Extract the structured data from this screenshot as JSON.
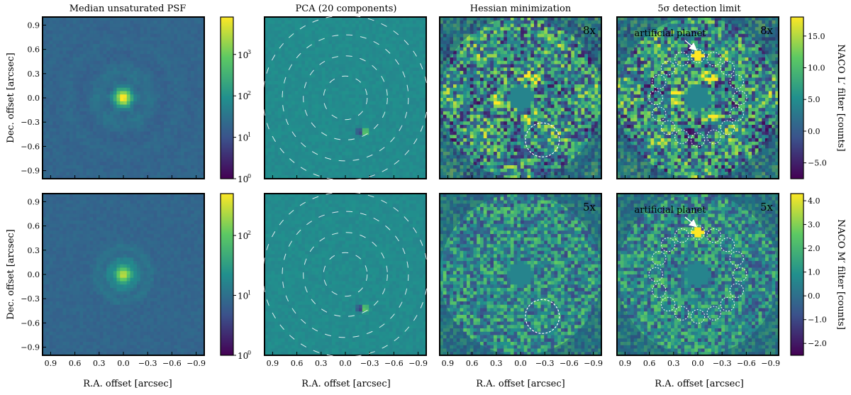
{
  "chart_data": {
    "type": "heatmap",
    "column_titles": [
      "Median unsaturated PSF",
      "PCA (20 components)",
      "Hessian minimization",
      "5σ detection limit"
    ],
    "xlabel": "R.A. offset [arcsec]",
    "ylabel": "Dec. offset [arcsec]",
    "x_ticks": [
      "0.9",
      "0.6",
      "0.3",
      "0.0",
      "−0.3",
      "−0.6",
      "−0.9"
    ],
    "y_ticks": [
      "0.9",
      "0.6",
      "0.3",
      "0.0",
      "−0.3",
      "−0.6",
      "−0.9"
    ],
    "xlim": [
      1.0,
      -1.0
    ],
    "ylim": [
      -1.0,
      1.0
    ],
    "colormap": "viridis",
    "colormap_stops": [
      "#440154",
      "#3b528b",
      "#21908d",
      "#5dc963",
      "#fde725"
    ],
    "annotation_color": "#ffffff",
    "planet_label": "artificial planet",
    "rows": [
      {
        "filter_label": "NACO L′ filter [counts]",
        "magnification": "8x",
        "psf_colorbar": {
          "scale": "log",
          "range": [
            1,
            8000
          ],
          "ticks": [
            "10⁰",
            "10¹",
            "10²",
            "10³"
          ]
        },
        "residual_colorbar": {
          "scale": "linear",
          "range": [
            -7.5,
            18
          ],
          "ticks": [
            "15.0",
            "10.0",
            "5.0",
            "0.0",
            "−5.0"
          ]
        },
        "pca_source": {
          "x": -0.22,
          "y": -0.42
        },
        "hessian_circle": {
          "x": -0.27,
          "y": -0.52,
          "r": 0.21
        },
        "planet": {
          "x": 0.0,
          "y": 0.52
        },
        "detection_ring_radius": 0.52,
        "detection_circle_count": 16
      },
      {
        "filter_label": "NACO M′ filter [counts]",
        "magnification": "5x",
        "psf_colorbar": {
          "scale": "log",
          "range": [
            1,
            500
          ],
          "ticks": [
            "10⁰",
            "10¹",
            "10²"
          ]
        },
        "residual_colorbar": {
          "scale": "linear",
          "range": [
            -2.5,
            4.3
          ],
          "ticks": [
            "4.0",
            "3.0",
            "2.0",
            "1.0",
            "0.0",
            "−1.0",
            "−2.0"
          ]
        },
        "pca_source": {
          "x": -0.22,
          "y": -0.42
        },
        "hessian_circle": {
          "x": -0.27,
          "y": -0.52,
          "r": 0.21
        },
        "planet": {
          "x": 0.0,
          "y": 0.52
        },
        "detection_ring_radius": 0.52,
        "detection_circle_count": 16
      }
    ]
  }
}
